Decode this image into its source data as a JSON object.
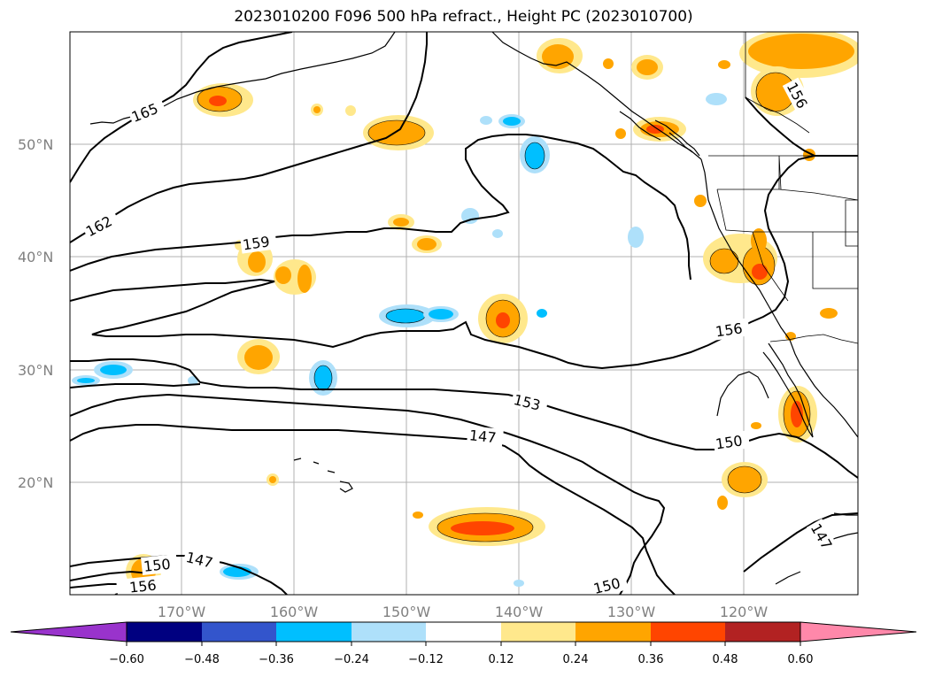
{
  "title": "2023010200 F096 500 hPa refract., Height PC (2023010700)",
  "colors": {
    "grid": "#b0b0b0",
    "purple": "#9933cc",
    "navy": "#000080",
    "royal": "#3355cc",
    "sky": "#00bfff",
    "lightblue": "#aee0fa",
    "white": "#ffffff",
    "lightyellow": "#ffe88c",
    "orange": "#ffa500",
    "redorange": "#ff4500",
    "firebrick": "#b22222",
    "pink": "#ff88aa"
  },
  "lat_labels": [
    "50°N",
    "40°N",
    "30°N",
    "20°N"
  ],
  "lon_labels": [
    "170°W",
    "160°W",
    "150°W",
    "140°W",
    "130°W",
    "120°W"
  ],
  "colorbar": {
    "ticks": [
      "−0.60",
      "−0.48",
      "−0.36",
      "−0.24",
      "−0.12",
      "0.12",
      "0.24",
      "0.36",
      "0.48",
      "0.60"
    ]
  },
  "contour_labels": [
    "165",
    "162",
    "159",
    "156",
    "156",
    "153",
    "150",
    "150",
    "147",
    "147",
    "150",
    "147",
    "156"
  ]
}
